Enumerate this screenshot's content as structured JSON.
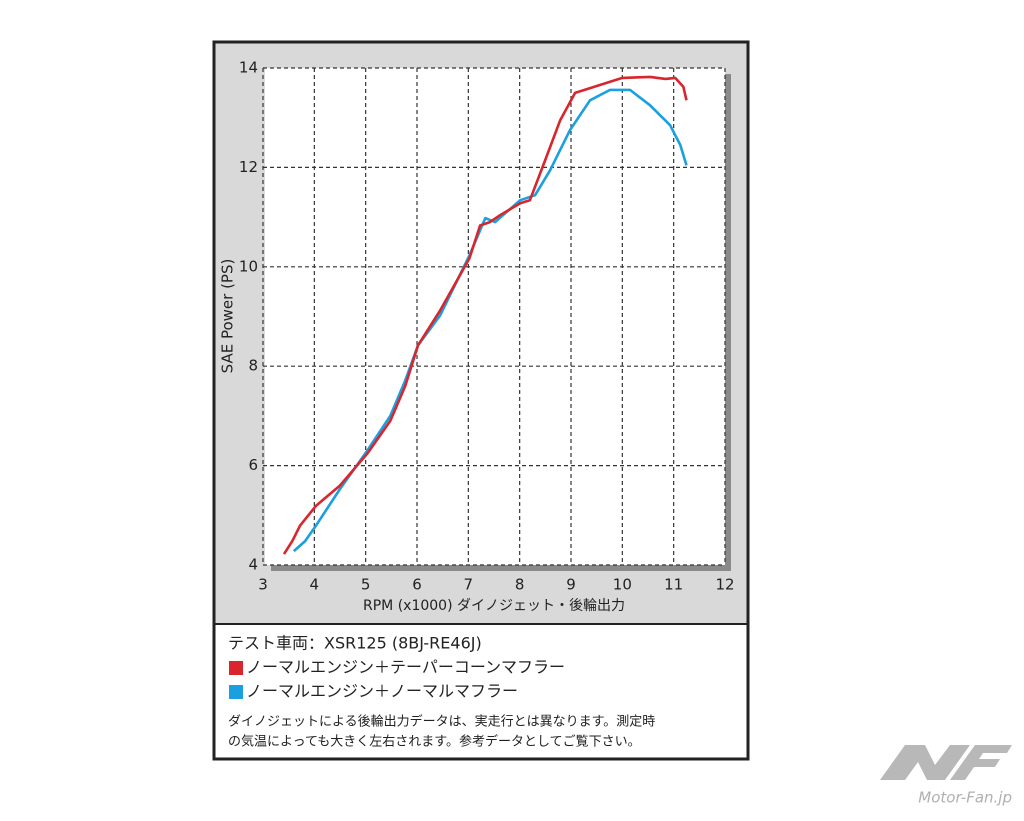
{
  "chart_data": {
    "type": "line",
    "ylabel": "SAE Power (PS)",
    "xlabel": "RPM (x1000) ダイノジェット・後輪出力",
    "xlim": [
      3,
      12
    ],
    "xticks": [
      3,
      4,
      5,
      6,
      7,
      8,
      9,
      10,
      11,
      12
    ],
    "ylim": [
      4,
      14
    ],
    "yticks": [
      4,
      6,
      8,
      10,
      12,
      14
    ],
    "grid": true,
    "legend_title": "テスト車両：XSR125 (8BJ-RE46J)",
    "notes": [
      "ダイノジェットによる後輪出力データは、実走行とは異なります。測定時",
      "の気温によっても大きく左右されます。参考データとしてご覧下さい。"
    ],
    "watermark": "Motor-Fan.jp",
    "series": [
      {
        "name": "ノーマルエンジン＋テーパーコーンマフラー",
        "color": "#d8262c",
        "x": [
          3.41,
          3.57,
          3.72,
          4.03,
          4.5,
          5.03,
          5.48,
          5.77,
          6.02,
          6.45,
          7.02,
          7.23,
          7.42,
          7.62,
          8.01,
          8.2,
          8.5,
          8.79,
          9.08,
          9.57,
          10.0,
          10.54,
          10.84,
          11.03,
          11.19,
          11.25
        ],
        "values": [
          4.22,
          4.48,
          4.79,
          5.19,
          5.6,
          6.24,
          6.9,
          7.6,
          8.42,
          9.12,
          10.17,
          10.83,
          10.9,
          11.04,
          11.28,
          11.34,
          12.15,
          12.95,
          13.5,
          13.66,
          13.8,
          13.82,
          13.78,
          13.8,
          13.62,
          13.35
        ]
      },
      {
        "name": "ノーマルエンジン＋ノーマルマフラー",
        "color": "#1aa0e0",
        "x": [
          3.6,
          3.82,
          4.03,
          4.5,
          5.03,
          5.48,
          5.77,
          6.02,
          6.45,
          7.02,
          7.33,
          7.52,
          8.01,
          8.3,
          8.59,
          8.98,
          9.37,
          9.76,
          10.15,
          10.54,
          10.93,
          11.13,
          11.25
        ],
        "values": [
          4.28,
          4.48,
          4.79,
          5.53,
          6.3,
          7.0,
          7.71,
          8.42,
          9.02,
          10.23,
          10.98,
          10.9,
          11.34,
          11.44,
          11.94,
          12.75,
          13.35,
          13.56,
          13.56,
          13.25,
          12.85,
          12.45,
          12.04
        ]
      }
    ]
  }
}
